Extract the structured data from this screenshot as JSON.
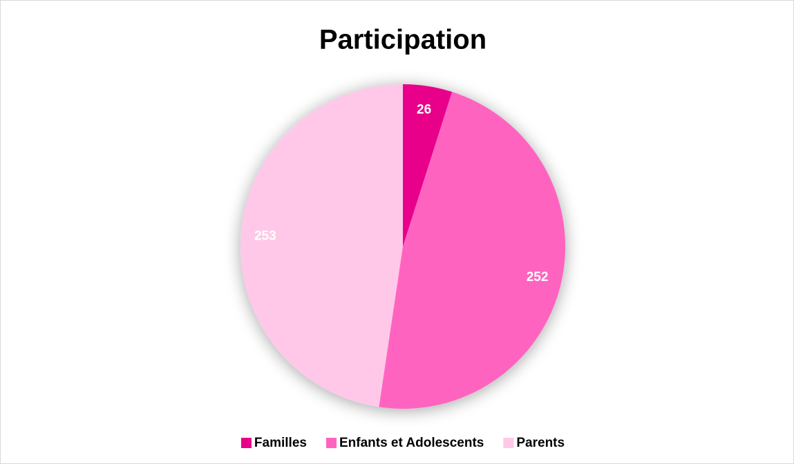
{
  "chart_data": {
    "type": "pie",
    "title": "Participation",
    "categories": [
      "Familles",
      "Enfants et Adolescents",
      "Parents"
    ],
    "values": [
      26,
      252,
      253
    ],
    "colors": [
      "#e8008a",
      "#ff63c0",
      "#ffc8e9"
    ],
    "legend": "bottom"
  }
}
